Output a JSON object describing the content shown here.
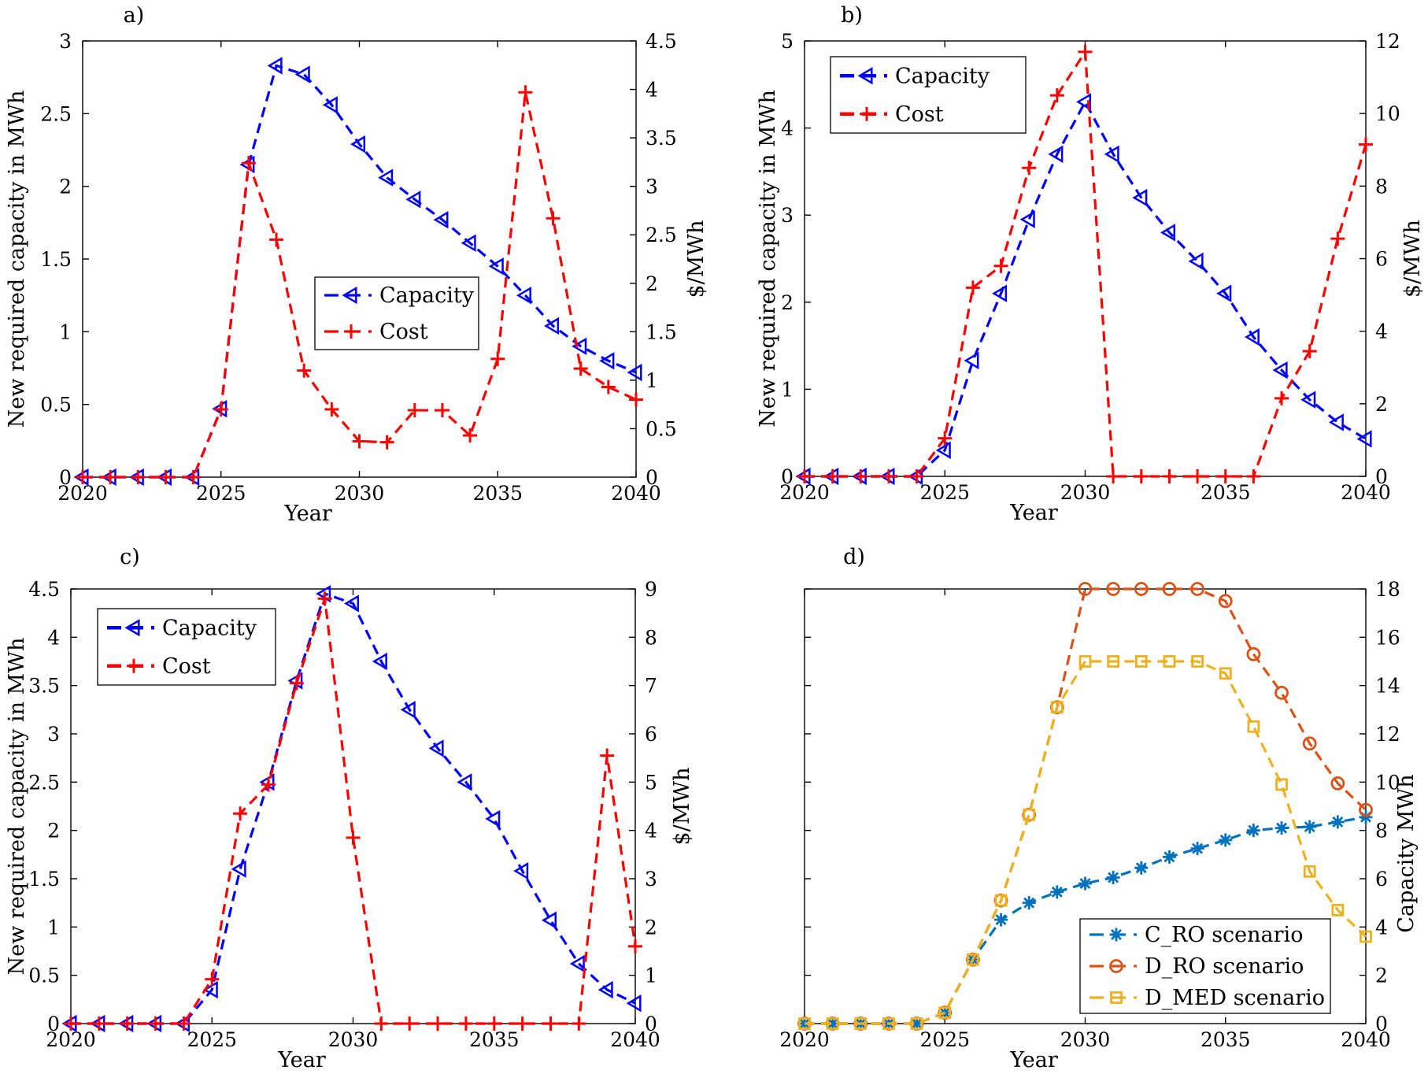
{
  "chart_data": [
    {
      "panel": "a)",
      "type": "line",
      "xlabel": "Year",
      "ylabel": "New required capacity in MWh",
      "y2label": "$/MWh",
      "xlim": [
        2020,
        2040
      ],
      "ylim": [
        0,
        3
      ],
      "y2lim": [
        0,
        4.5
      ],
      "xticks": [
        "2020",
        "2025",
        "2030",
        "2035",
        "2040"
      ],
      "yticks": [
        "0",
        "0.5",
        "1",
        "1.5",
        "2",
        "2.5",
        "3"
      ],
      "y2ticks": [
        "0",
        "0.5",
        "1",
        "1.5",
        "2",
        "2.5",
        "3",
        "3.5",
        "4",
        "4.5"
      ],
      "x": [
        2020,
        2021,
        2022,
        2023,
        2024,
        2025,
        2026,
        2027,
        2028,
        2029,
        2030,
        2031,
        2032,
        2033,
        2034,
        2035,
        2036,
        2037,
        2038,
        2039,
        2040
      ],
      "legend_position": "center-right",
      "series": [
        {
          "name": "Capacity",
          "axis": "left",
          "color": "#0000ff",
          "marker": "triangle-left",
          "values": [
            0,
            0,
            0,
            0,
            0,
            0.47,
            2.15,
            2.83,
            2.77,
            2.56,
            2.29,
            2.06,
            1.91,
            1.77,
            1.61,
            1.45,
            1.25,
            1.04,
            0.9,
            0.8,
            0.72
          ]
        },
        {
          "name": "Cost",
          "axis": "right",
          "color": "#ff0000",
          "marker": "plus",
          "values": [
            0,
            0,
            0,
            0,
            0,
            0.7,
            3.24,
            2.45,
            1.1,
            0.7,
            0.37,
            0.36,
            0.69,
            0.69,
            0.43,
            1.22,
            3.97,
            2.67,
            1.12,
            0.93,
            0.8
          ]
        }
      ]
    },
    {
      "panel": "b)",
      "type": "line",
      "xlabel": "Year",
      "ylabel": "New required capacity in MWh",
      "y2label": "$/MWh",
      "xlim": [
        2020,
        2040
      ],
      "ylim": [
        0,
        5
      ],
      "y2lim": [
        0,
        12
      ],
      "xticks": [
        "2020",
        "2025",
        "2030",
        "2035",
        "2040"
      ],
      "yticks": [
        "0",
        "1",
        "2",
        "3",
        "4",
        "5"
      ],
      "y2ticks": [
        "0",
        "2",
        "4",
        "6",
        "8",
        "10",
        "12"
      ],
      "x": [
        2020,
        2021,
        2022,
        2023,
        2024,
        2025,
        2026,
        2027,
        2028,
        2029,
        2030,
        2031,
        2032,
        2033,
        2034,
        2035,
        2036,
        2037,
        2038,
        2039,
        2040
      ],
      "legend_position": "top-left",
      "series": [
        {
          "name": "Capacity",
          "axis": "left",
          "color": "#0000ff",
          "marker": "triangle-left",
          "values": [
            0,
            0,
            0,
            0,
            0,
            0.3,
            1.33,
            2.1,
            2.95,
            3.7,
            4.3,
            3.7,
            3.2,
            2.8,
            2.47,
            2.1,
            1.6,
            1.22,
            0.88,
            0.62,
            0.43
          ]
        },
        {
          "name": "Cost",
          "axis": "right",
          "color": "#ff0000",
          "marker": "plus",
          "values": [
            0,
            0,
            0,
            0,
            0,
            1.05,
            5.2,
            5.8,
            8.5,
            10.5,
            11.7,
            0,
            0,
            0,
            0,
            0,
            0,
            2.15,
            3.45,
            6.55,
            9.15
          ]
        }
      ]
    },
    {
      "panel": "c)",
      "type": "line",
      "xlabel": "Year",
      "ylabel": "New required capacity in MWh",
      "y2label": "$/MWh",
      "xlim": [
        2020,
        2040
      ],
      "ylim": [
        0,
        4.5
      ],
      "y2lim": [
        0,
        9
      ],
      "xticks": [
        "2020",
        "2025",
        "2030",
        "2035",
        "2040"
      ],
      "yticks": [
        "0",
        "0.5",
        "1",
        "1.5",
        "2",
        "2.5",
        "3",
        "3.5",
        "4",
        "4.5"
      ],
      "y2ticks": [
        "0",
        "1",
        "2",
        "3",
        "4",
        "5",
        "6",
        "7",
        "8",
        "9"
      ],
      "x": [
        2020,
        2021,
        2022,
        2023,
        2024,
        2025,
        2026,
        2027,
        2028,
        2029,
        2030,
        2031,
        2032,
        2033,
        2034,
        2035,
        2036,
        2037,
        2038,
        2039,
        2040
      ],
      "legend_position": "top-left",
      "series": [
        {
          "name": "Capacity",
          "axis": "left",
          "color": "#0000ff",
          "marker": "triangle-left",
          "values": [
            0,
            0,
            0,
            0,
            0,
            0.35,
            1.6,
            2.5,
            3.55,
            4.45,
            4.35,
            3.75,
            3.25,
            2.85,
            2.5,
            2.12,
            1.58,
            1.07,
            0.62,
            0.35,
            0.21
          ]
        },
        {
          "name": "Cost",
          "axis": "right",
          "color": "#ff0000",
          "marker": "plus",
          "values": [
            0,
            0,
            0,
            0,
            0,
            0.92,
            4.35,
            4.95,
            7.05,
            8.8,
            3.85,
            0,
            0,
            0,
            0,
            0,
            0,
            0,
            0,
            5.55,
            1.6
          ]
        }
      ]
    },
    {
      "panel": "d)",
      "type": "line",
      "xlabel": "Year",
      "ylabel": "Capacity MWh",
      "xlim": [
        2020,
        2040
      ],
      "ylim": [
        0,
        18
      ],
      "xticks": [
        "2020",
        "2025",
        "2030",
        "2035",
        "2040"
      ],
      "yticks": [
        "0",
        "2",
        "4",
        "6",
        "8",
        "10",
        "12",
        "14",
        "16",
        "18"
      ],
      "x": [
        2020,
        2021,
        2022,
        2023,
        2024,
        2025,
        2026,
        2027,
        2028,
        2029,
        2030,
        2031,
        2032,
        2033,
        2034,
        2035,
        2036,
        2037,
        2038,
        2039,
        2040
      ],
      "legend_position": "bottom-right",
      "series": [
        {
          "name": "C_RO scenario",
          "axis": "right",
          "color": "#0072bd",
          "marker": "asterisk",
          "values": [
            0,
            0,
            0,
            0,
            0,
            0.45,
            2.65,
            4.3,
            5.0,
            5.45,
            5.8,
            6.05,
            6.45,
            6.9,
            7.25,
            7.6,
            8.0,
            8.1,
            8.15,
            8.35,
            8.55
          ]
        },
        {
          "name": "D_RO scenario",
          "axis": "right",
          "color": "#d95319",
          "marker": "circle",
          "values": [
            0,
            0,
            0,
            0,
            0,
            0.45,
            2.65,
            5.1,
            8.65,
            13.1,
            18,
            18,
            18,
            18,
            18,
            17.5,
            15.3,
            13.7,
            11.6,
            9.95,
            8.85
          ]
        },
        {
          "name": "D_MED scenario",
          "axis": "right",
          "color": "#edb120",
          "marker": "square",
          "values": [
            0,
            0,
            0,
            0,
            0,
            0.45,
            2.65,
            5.1,
            8.65,
            13.1,
            15,
            15,
            15,
            15,
            15,
            14.5,
            12.3,
            9.9,
            6.3,
            4.7,
            3.6
          ]
        }
      ]
    }
  ]
}
